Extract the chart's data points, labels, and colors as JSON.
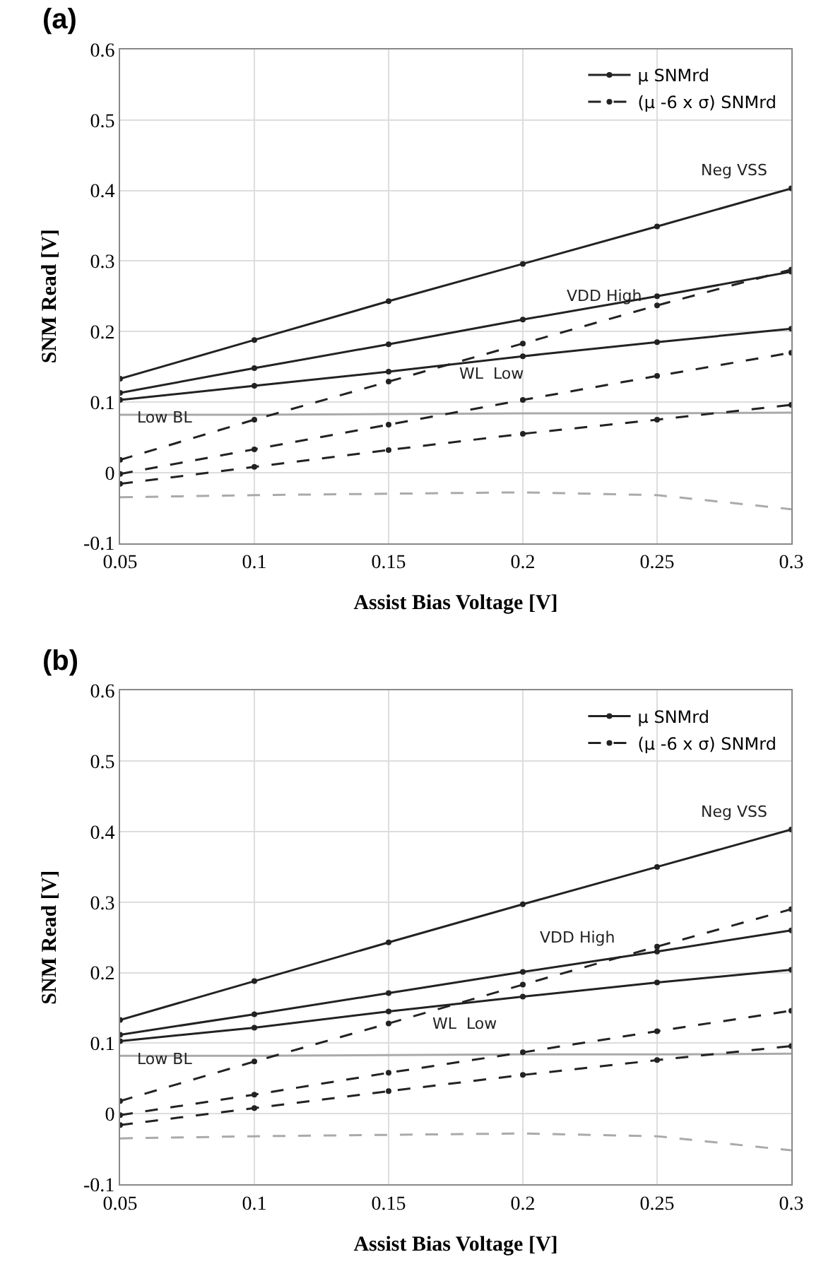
{
  "chart_data": [
    {
      "type": "line",
      "title": "(a)",
      "xlabel": "Assist Bias Voltage [V]",
      "ylabel": "SNM Read [V]",
      "x": [
        0.05,
        0.1,
        0.15,
        0.2,
        0.25,
        0.3
      ],
      "xlim": [
        0.05,
        0.3
      ],
      "xticks": [
        0.05,
        0.1,
        0.15,
        0.2,
        0.25,
        0.3
      ],
      "ylim": [
        -0.1,
        0.6
      ],
      "yticks": [
        -0.1,
        0,
        0.1,
        0.2,
        0.3,
        0.4,
        0.5,
        0.6
      ],
      "grid": true,
      "legend": "top right",
      "series": [
        {
          "name": "μ SNMrd",
          "color": "#222222",
          "line_style": "solid",
          "marker": "circle",
          "values": [
            0.133,
            0.188,
            0.243,
            0.296,
            0.349,
            0.403
          ]
        },
        {
          "color": "#222222",
          "line_style": "solid",
          "marker": "circle",
          "values": [
            0.113,
            0.148,
            0.182,
            0.217,
            0.25,
            0.285
          ]
        },
        {
          "color": "#222222",
          "line_style": "solid",
          "marker": "circle",
          "values": [
            0.103,
            0.123,
            0.143,
            0.165,
            0.185,
            0.204
          ]
        },
        {
          "color": "#aaaaaa",
          "line_style": "solid",
          "marker": "none",
          "values": [
            0.082,
            0.082,
            0.083,
            0.084,
            0.084,
            0.085
          ]
        },
        {
          "name": "(μ -6 x σ) SNMrd",
          "color": "#222222",
          "line_style": "dashed",
          "marker": "circle",
          "values": [
            0.018,
            0.075,
            0.129,
            0.183,
            0.237,
            0.288
          ]
        },
        {
          "color": "#222222",
          "line_style": "dashed",
          "marker": "circle",
          "values": [
            -0.002,
            0.033,
            0.068,
            0.103,
            0.137,
            0.17
          ]
        },
        {
          "color": "#222222",
          "line_style": "dashed",
          "marker": "circle",
          "values": [
            -0.016,
            0.008,
            0.032,
            0.055,
            0.075,
            0.096
          ]
        },
        {
          "color": "#aaaaaa",
          "line_style": "dashed",
          "marker": "none",
          "values": [
            -0.035,
            -0.032,
            -0.03,
            -0.028,
            -0.032,
            -0.052
          ]
        }
      ],
      "annotations": [
        "Neg VSS",
        "VDD High",
        "WL  Low",
        "Low BL"
      ]
    },
    {
      "type": "line",
      "title": "(b)",
      "xlabel": "Assist Bias Voltage [V]",
      "ylabel": "SNM Read [V]",
      "x": [
        0.05,
        0.1,
        0.15,
        0.2,
        0.25,
        0.3
      ],
      "xlim": [
        0.05,
        0.3
      ],
      "xticks": [
        0.05,
        0.1,
        0.15,
        0.2,
        0.25,
        0.3
      ],
      "ylim": [
        -0.1,
        0.6
      ],
      "yticks": [
        -0.1,
        0,
        0.1,
        0.2,
        0.3,
        0.4,
        0.5,
        0.6
      ],
      "grid": true,
      "legend": "top right",
      "series": [
        {
          "name": "μ SNMrd",
          "color": "#222222",
          "line_style": "solid",
          "marker": "circle",
          "values": [
            0.133,
            0.188,
            0.243,
            0.297,
            0.35,
            0.403
          ]
        },
        {
          "color": "#222222",
          "line_style": "solid",
          "marker": "circle",
          "values": [
            0.112,
            0.141,
            0.171,
            0.201,
            0.23,
            0.26
          ]
        },
        {
          "color": "#222222",
          "line_style": "solid",
          "marker": "circle",
          "values": [
            0.103,
            0.122,
            0.145,
            0.166,
            0.186,
            0.204
          ]
        },
        {
          "color": "#aaaaaa",
          "line_style": "solid",
          "marker": "none",
          "values": [
            0.082,
            0.082,
            0.083,
            0.084,
            0.084,
            0.085
          ]
        },
        {
          "name": "(μ -6 x σ) SNMrd",
          "color": "#222222",
          "line_style": "dashed",
          "marker": "circle",
          "values": [
            0.018,
            0.074,
            0.128,
            0.183,
            0.237,
            0.29
          ]
        },
        {
          "color": "#222222",
          "line_style": "dashed",
          "marker": "circle",
          "values": [
            -0.002,
            0.027,
            0.058,
            0.087,
            0.117,
            0.146
          ]
        },
        {
          "color": "#222222",
          "line_style": "dashed",
          "marker": "circle",
          "values": [
            -0.016,
            0.008,
            0.032,
            0.055,
            0.076,
            0.096
          ]
        },
        {
          "color": "#aaaaaa",
          "line_style": "dashed",
          "marker": "none",
          "values": [
            -0.035,
            -0.032,
            -0.03,
            -0.028,
            -0.032,
            -0.052
          ]
        }
      ],
      "annotations": [
        "Neg VSS",
        "VDD High",
        "WL  Low",
        "Low BL"
      ]
    }
  ]
}
